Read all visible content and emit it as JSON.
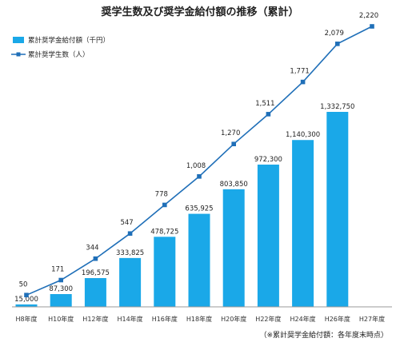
{
  "title": "奨学生数及び奨学金給付額の推移（累計）",
  "note": "（※累計奨学金給付額：各年度末時点）",
  "colors": {
    "bar": "#1aa8e8",
    "line": "#1f6fb8",
    "axis": "#999999"
  },
  "chart_data": {
    "type": "bar",
    "title": "奨学生数及び奨学金給付額の推移（累計）",
    "categories": [
      "H8年度",
      "H10年度",
      "H12年度",
      "H14年度",
      "H16年度",
      "H18年度",
      "H20年度",
      "H22年度",
      "H24年度",
      "H26年度",
      "H27年度"
    ],
    "legend_position": "top-left",
    "grid": false,
    "series": [
      {
        "name": "累計奨学金給付額（千円）",
        "type": "bar",
        "values": [
          15000,
          87300,
          196575,
          333825,
          478725,
          635925,
          803850,
          972300,
          1140300,
          1332750,
          null
        ],
        "labels": [
          "15,000",
          "87,300",
          "196,575",
          "333,825",
          "478,725",
          "635,925",
          "803,850",
          "972,300",
          "1,140,300",
          "1,332,750",
          ""
        ]
      },
      {
        "name": "累計奨学生数（人）",
        "type": "line",
        "values": [
          50,
          171,
          344,
          547,
          778,
          1008,
          1270,
          1511,
          1771,
          2079,
          2220
        ],
        "labels": [
          "50",
          "171",
          "344",
          "547",
          "778",
          "1,008",
          "1,270",
          "1,511",
          "1,771",
          "2,079",
          "2,220"
        ]
      }
    ],
    "bar_ylim": [
      0,
      1700000
    ],
    "line_ylim": [
      0,
      2300
    ]
  }
}
